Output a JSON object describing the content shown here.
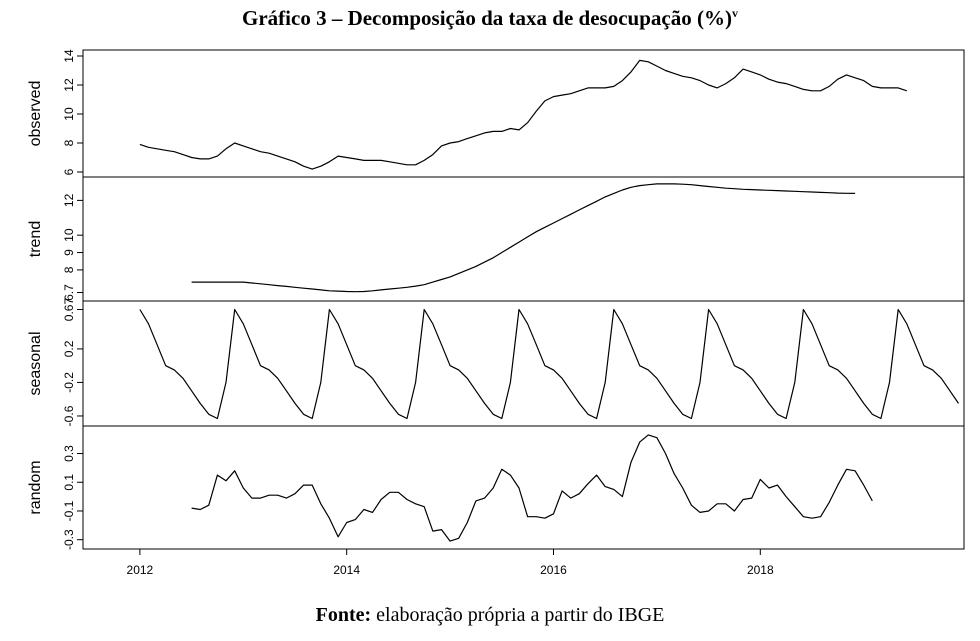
{
  "title": "Gráfico 3 – Decomposição da taxa de desocupação (%)",
  "title_sup": "v",
  "source_bold": "Fonte:",
  "source_text": " elaboração própria a partir do IBGE",
  "chart_data": {
    "type": "line",
    "x_start": 2012.0,
    "x_step": 0.08333333,
    "x_ticks": [
      2012,
      2014,
      2016,
      2018
    ],
    "x_ticklabels": [
      "2012",
      "2014",
      "2016",
      "2018"
    ],
    "line_color": "#000000",
    "panels": [
      {
        "name": "observed",
        "ylim": [
          6,
          14
        ],
        "yticks": [
          6,
          8,
          10,
          12,
          14
        ],
        "yticklabels": [
          "6",
          "8",
          "10",
          "12",
          "14"
        ],
        "start_index": 0,
        "values": [
          7.9,
          7.7,
          7.6,
          7.5,
          7.4,
          7.2,
          7.0,
          6.9,
          6.9,
          7.1,
          7.6,
          8.0,
          7.8,
          7.6,
          7.4,
          7.3,
          7.1,
          6.9,
          6.7,
          6.4,
          6.2,
          6.4,
          6.7,
          7.1,
          7.0,
          6.9,
          6.8,
          6.8,
          6.8,
          6.7,
          6.6,
          6.5,
          6.5,
          6.8,
          7.2,
          7.8,
          8.0,
          8.1,
          8.3,
          8.5,
          8.7,
          8.8,
          8.8,
          9.0,
          8.9,
          9.4,
          10.2,
          10.9,
          11.2,
          11.3,
          11.4,
          11.6,
          11.8,
          11.8,
          11.8,
          11.9,
          12.3,
          12.9,
          13.7,
          13.6,
          13.3,
          13.0,
          12.8,
          12.6,
          12.5,
          12.3,
          12.0,
          11.8,
          12.1,
          12.5,
          13.1,
          12.9,
          12.7,
          12.4,
          12.2,
          12.1,
          11.9,
          11.7,
          11.6,
          11.6,
          11.9,
          12.4,
          12.7,
          12.5,
          12.3,
          11.9,
          11.8,
          11.8,
          11.8,
          11.6
        ]
      },
      {
        "name": "trend",
        "ylim": [
          6.5,
          13.0
        ],
        "yticks": [
          6.7,
          8,
          9,
          10,
          12
        ],
        "yticklabels": [
          "6.7",
          "8",
          "9",
          "10",
          "12"
        ],
        "start_index": 6,
        "values": [
          7.3,
          7.3,
          7.3,
          7.3,
          7.3,
          7.3,
          7.3,
          7.25,
          7.2,
          7.15,
          7.1,
          7.05,
          7.0,
          6.95,
          6.9,
          6.85,
          6.8,
          6.78,
          6.76,
          6.75,
          6.76,
          6.8,
          6.85,
          6.9,
          6.95,
          7.0,
          7.07,
          7.15,
          7.3,
          7.45,
          7.6,
          7.8,
          8.0,
          8.2,
          8.45,
          8.7,
          9.0,
          9.3,
          9.6,
          9.9,
          10.2,
          10.45,
          10.7,
          10.95,
          11.2,
          11.45,
          11.7,
          11.95,
          12.2,
          12.4,
          12.6,
          12.75,
          12.85,
          12.9,
          12.95,
          12.95,
          12.95,
          12.93,
          12.9,
          12.85,
          12.8,
          12.75,
          12.7,
          12.67,
          12.64,
          12.62,
          12.6,
          12.58,
          12.56,
          12.54,
          12.52,
          12.5,
          12.48,
          12.46,
          12.44,
          12.42,
          12.41,
          12.4
        ]
      },
      {
        "name": "seasonal",
        "ylim": [
          -0.66,
          0.7
        ],
        "yticks": [
          -0.6,
          -0.2,
          0.2,
          0.67
        ],
        "yticklabels": [
          "-0.6",
          "-0.2",
          "0.2",
          "0.67"
        ],
        "start_index": 0,
        "pattern": [
          0.67,
          0.5,
          0.25,
          0.0,
          -0.05,
          -0.15,
          -0.3,
          -0.45,
          -0.58,
          -0.63,
          -0.2,
          0.67
        ],
        "values": [
          0.67,
          0.5,
          0.25,
          0.0,
          -0.05,
          -0.15,
          -0.3,
          -0.45,
          -0.58,
          -0.63,
          -0.2,
          0.67,
          0.5,
          0.25,
          0.0,
          -0.05,
          -0.15,
          -0.3,
          -0.45,
          -0.58,
          -0.63,
          -0.2,
          0.67,
          0.5,
          0.25,
          0.0,
          -0.05,
          -0.15,
          -0.3,
          -0.45,
          -0.58,
          -0.63,
          -0.2,
          0.67,
          0.5,
          0.25,
          0.0,
          -0.05,
          -0.15,
          -0.3,
          -0.45,
          -0.58,
          -0.63,
          -0.2,
          0.67,
          0.5,
          0.25,
          0.0,
          -0.05,
          -0.15,
          -0.3,
          -0.45,
          -0.58,
          -0.63,
          -0.2,
          0.67,
          0.5,
          0.25,
          0.0,
          -0.05,
          -0.15,
          -0.3,
          -0.45,
          -0.58,
          -0.63,
          -0.2,
          0.67,
          0.5,
          0.25,
          0.0,
          -0.05,
          -0.15,
          -0.3,
          -0.45,
          -0.58,
          -0.63,
          -0.2,
          0.67,
          0.5,
          0.25,
          0.0,
          -0.05,
          -0.15,
          -0.3,
          -0.45,
          -0.58,
          -0.63,
          -0.2,
          0.67,
          0.5,
          0.25,
          0.0,
          -0.05,
          -0.15,
          -0.3,
          -0.45
        ]
      },
      {
        "name": "random",
        "ylim": [
          -0.33,
          0.45
        ],
        "yticks": [
          -0.3,
          -0.1,
          0.1,
          0.3
        ],
        "yticklabels": [
          "-0.3",
          "-0.1",
          "0.1",
          "0.3"
        ],
        "start_index": 6,
        "values": [
          -0.08,
          -0.09,
          -0.06,
          0.15,
          0.11,
          0.18,
          0.06,
          -0.01,
          -0.01,
          0.01,
          0.01,
          -0.01,
          0.02,
          0.08,
          0.08,
          -0.05,
          -0.15,
          -0.28,
          -0.18,
          -0.16,
          -0.09,
          -0.11,
          -0.02,
          0.03,
          0.03,
          -0.02,
          -0.05,
          -0.07,
          -0.24,
          -0.23,
          -0.31,
          -0.29,
          -0.18,
          -0.03,
          -0.01,
          0.06,
          0.19,
          0.15,
          0.06,
          -0.14,
          -0.14,
          -0.15,
          -0.12,
          0.04,
          -0.01,
          0.02,
          0.09,
          0.15,
          0.07,
          0.05,
          0.0,
          0.24,
          0.38,
          0.43,
          0.41,
          0.3,
          0.16,
          0.06,
          -0.06,
          -0.11,
          -0.1,
          -0.05,
          -0.05,
          -0.1,
          -0.02,
          -0.01,
          0.12,
          0.06,
          0.08,
          0.0,
          -0.07,
          -0.14,
          -0.15,
          -0.14,
          -0.04,
          0.08,
          0.19,
          0.18,
          0.08,
          -0.03
        ]
      }
    ]
  }
}
